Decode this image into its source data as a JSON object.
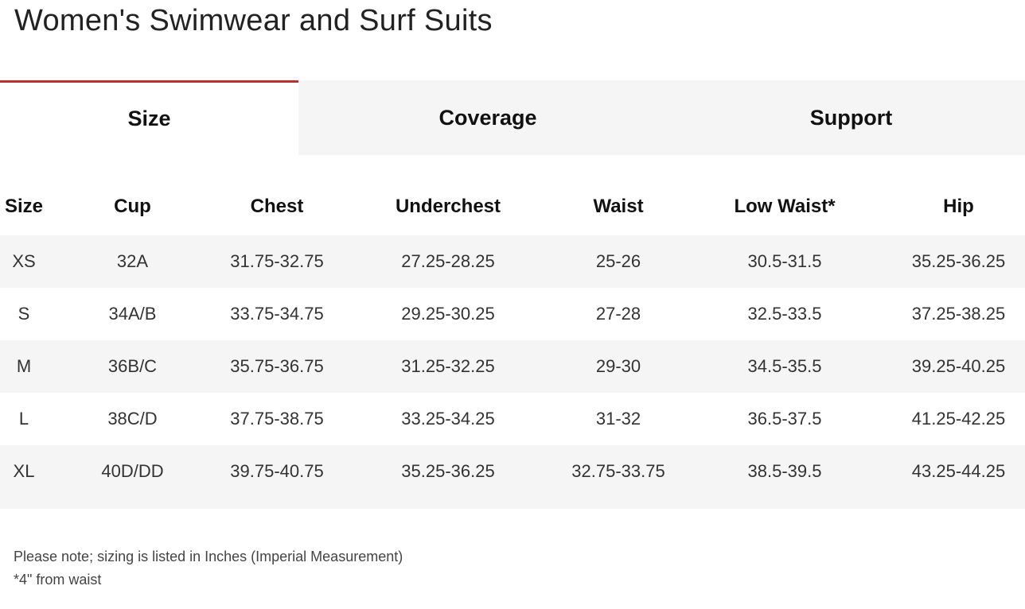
{
  "page": {
    "title": "Women's Swimwear and Surf Suits"
  },
  "tabs": [
    {
      "label": "Size",
      "active": true
    },
    {
      "label": "Coverage",
      "active": false
    },
    {
      "label": "Support",
      "active": false
    }
  ],
  "colors": {
    "accent": "#b8312f",
    "tab_inactive_bg": "#f5f5f5",
    "row_stripe_bg": "#f5f5f5"
  },
  "table": {
    "headers": [
      "Size",
      "Cup",
      "Chest",
      "Underchest",
      "Waist",
      "Low Waist*",
      "Hip"
    ],
    "rows": [
      [
        "XS",
        "32A",
        "31.75-32.75",
        "27.25-28.25",
        "25-26",
        "30.5-31.5",
        "35.25-36.25"
      ],
      [
        "S",
        "34A/B",
        "33.75-34.75",
        "29.25-30.25",
        "27-28",
        "32.5-33.5",
        "37.25-38.25"
      ],
      [
        "M",
        "36B/C",
        "35.75-36.75",
        "31.25-32.25",
        "29-30",
        "34.5-35.5",
        "39.25-40.25"
      ],
      [
        "L",
        "38C/D",
        "37.75-38.75",
        "33.25-34.25",
        "31-32",
        "36.5-37.5",
        "41.25-42.25"
      ],
      [
        "XL",
        "40D/DD",
        "39.75-40.75",
        "35.25-36.25",
        "32.75-33.75",
        "38.5-39.5",
        "43.25-44.25"
      ]
    ]
  },
  "notes": {
    "line1": "Please note; sizing is listed in Inches (Imperial Measurement)",
    "line2": "*4\" from waist"
  }
}
